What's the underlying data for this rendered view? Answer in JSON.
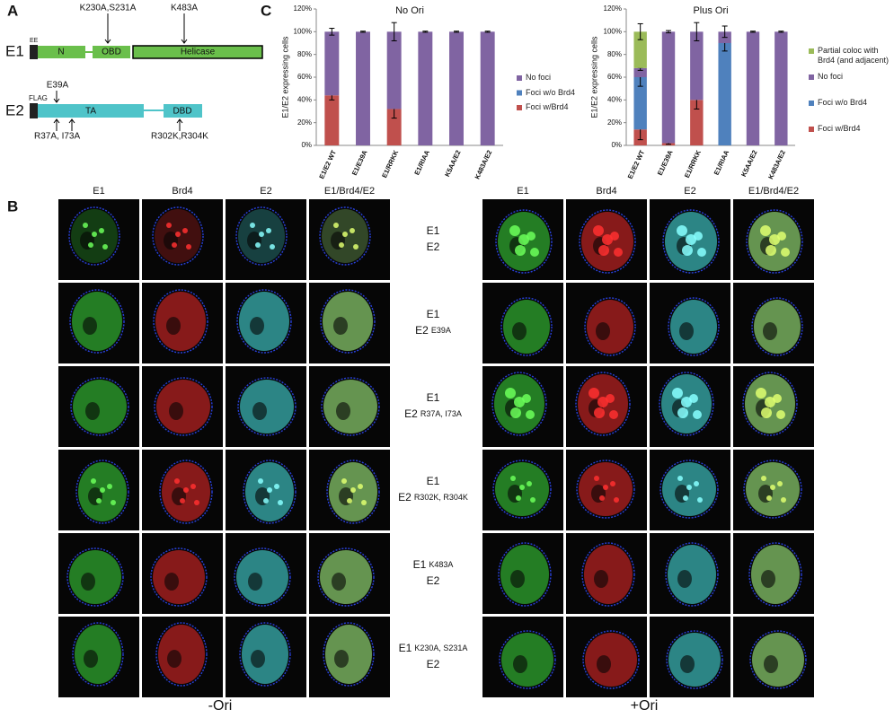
{
  "panel_a": {
    "label": "A",
    "e1": {
      "name": "E1",
      "tag": "EE",
      "domains": [
        "N",
        "OBD",
        "Helicase"
      ],
      "mutations": [
        "K230A,S231A",
        "K483A"
      ]
    },
    "e2": {
      "name": "E2",
      "tag": "FLAG",
      "domains": [
        "TA",
        "DBD"
      ],
      "mutations_above": [
        "E39A"
      ],
      "mutations_below": [
        "R37A, I73A",
        "R302K,R304K"
      ]
    }
  },
  "panel_b": {
    "label": "B",
    "columns_left": [
      "E1",
      "Brd4",
      "E2",
      "E1/Brd4/E2"
    ],
    "columns_right": [
      "E1",
      "Brd4",
      "E2",
      "E1/Brd4/E2"
    ],
    "rows": [
      [
        [
          "E1"
        ],
        [
          "E2"
        ]
      ],
      [
        [
          "E1"
        ],
        [
          "E2",
          "E39A"
        ]
      ],
      [
        [
          "E1"
        ],
        [
          "E2",
          "R37A, I73A"
        ]
      ],
      [
        [
          "E1"
        ],
        [
          "E2",
          "R302K, R304K"
        ]
      ],
      [
        [
          "E1",
          "K483A"
        ],
        [
          "E2"
        ]
      ],
      [
        [
          "E1",
          "K230A, S231A"
        ],
        [
          "E2"
        ]
      ]
    ],
    "footer_left": "-Ori",
    "footer_right": "+Ori"
  },
  "panel_c_label": "C",
  "chart_data": [
    {
      "type": "bar",
      "stacked": true,
      "title": "No Ori",
      "y_label": "E1/E2 expressing cells",
      "legend": "right",
      "categories": [
        "E1/E2 WT",
        "E1/E39A",
        "E1/RRKK",
        "E1/RIAA",
        "K5AA/E2",
        "K483A/E2"
      ],
      "series": [
        {
          "name": "Foci w/Brd4",
          "color": "#c0504d",
          "values": [
            44,
            0,
            32,
            0,
            0,
            0
          ],
          "errors": [
            4,
            null,
            8,
            null,
            null,
            null
          ]
        },
        {
          "name": "Foci w/o Brd4",
          "color": "#4f81bd",
          "values": [
            0,
            0,
            0,
            0,
            0,
            0
          ],
          "errors": [
            null,
            null,
            null,
            null,
            null,
            null
          ]
        },
        {
          "name": "No foci",
          "color": "#8064a2",
          "values": [
            56,
            100,
            68,
            100,
            100,
            100
          ],
          "errors": [
            3,
            0.5,
            8,
            0.5,
            0.5,
            0.5
          ]
        }
      ],
      "ylim": [
        0,
        120
      ],
      "yticks": [
        {
          "value": 0,
          "label": "0%"
        },
        {
          "value": 20,
          "label": "20%"
        },
        {
          "value": 40,
          "label": "40%"
        },
        {
          "value": 60,
          "label": "60%"
        },
        {
          "value": 80,
          "label": "80%"
        },
        {
          "value": 100,
          "label": "100%"
        },
        {
          "value": 120,
          "label": "120%"
        }
      ]
    },
    {
      "type": "bar",
      "stacked": true,
      "title": "Plus Ori",
      "y_label": "E1/E2 expressing cells",
      "legend": "right",
      "categories": [
        "E1/E2 WT",
        "E1/E39A",
        "E1/RRKK",
        "E1/RIAA",
        "K5AA/E2",
        "K483A/E2"
      ],
      "series": [
        {
          "name": "Foci w/Brd4",
          "color": "#c0504d",
          "values": [
            14,
            2,
            40,
            0,
            0,
            0
          ],
          "errors": [
            9,
            1,
            8,
            null,
            null,
            null
          ]
        },
        {
          "name": "Foci w/o Brd4",
          "color": "#4f81bd",
          "values": [
            46,
            0,
            0,
            90,
            0,
            0
          ],
          "errors": [
            8,
            null,
            null,
            7,
            null,
            null
          ]
        },
        {
          "name": "No foci",
          "color": "#8064a2",
          "values": [
            8,
            98,
            60,
            10,
            100,
            100
          ],
          "errors": [
            2,
            1,
            8,
            5,
            0.5,
            0.5
          ]
        },
        {
          "name": "Partial coloc with Brd4 (and adjacent)",
          "color": "#9bbb59",
          "values": [
            32,
            0,
            0,
            0,
            0,
            0
          ],
          "errors": [
            7,
            null,
            null,
            null,
            null,
            null
          ]
        }
      ],
      "ylim": [
        0,
        120
      ],
      "yticks": [
        {
          "value": 0,
          "label": "0%"
        },
        {
          "value": 20,
          "label": "20%"
        },
        {
          "value": 40,
          "label": "40%"
        },
        {
          "value": 60,
          "label": "60%"
        },
        {
          "value": 80,
          "label": "80%"
        },
        {
          "value": 100,
          "label": "100%"
        },
        {
          "value": 120,
          "label": "120%"
        }
      ]
    }
  ]
}
